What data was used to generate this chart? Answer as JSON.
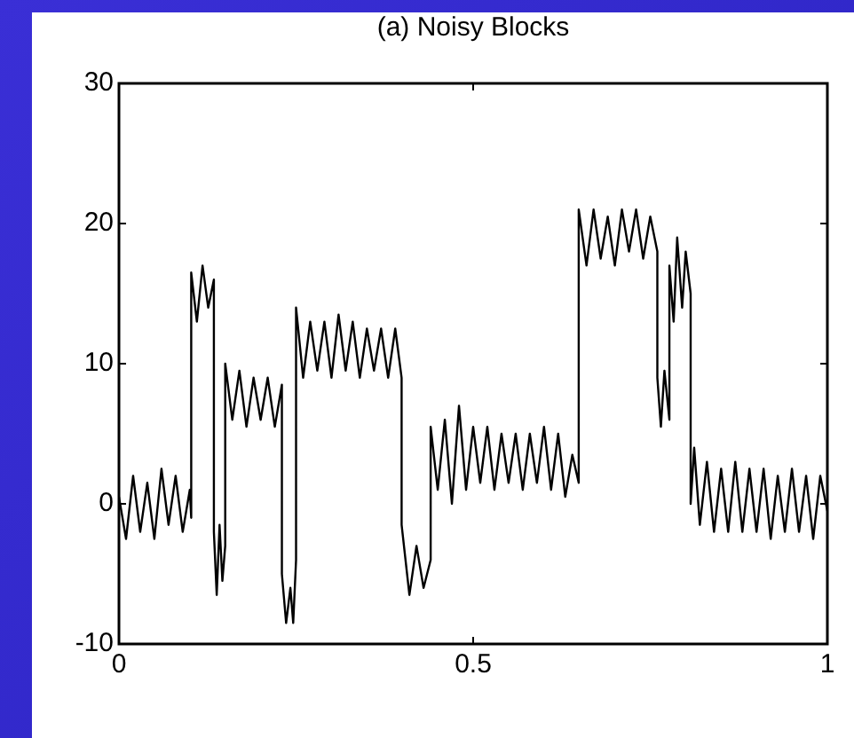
{
  "chart_data": {
    "type": "line",
    "title": "(a) Noisy Blocks",
    "x": [
      0,
      0.01,
      0.02,
      0.03,
      0.04,
      0.05,
      0.06,
      0.07,
      0.08,
      0.09,
      0.1,
      0.102,
      0.102,
      0.11,
      0.118,
      0.126,
      0.134,
      0.134,
      0.138,
      0.142,
      0.146,
      0.15,
      0.15,
      0.16,
      0.17,
      0.18,
      0.19,
      0.2,
      0.21,
      0.22,
      0.23,
      0.23,
      0.236,
      0.242,
      0.246,
      0.25,
      0.25,
      0.26,
      0.27,
      0.28,
      0.29,
      0.3,
      0.31,
      0.32,
      0.33,
      0.34,
      0.35,
      0.36,
      0.37,
      0.38,
      0.39,
      0.399,
      0.399,
      0.41,
      0.42,
      0.43,
      0.44,
      0.44,
      0.45,
      0.46,
      0.47,
      0.48,
      0.49,
      0.5,
      0.51,
      0.52,
      0.53,
      0.54,
      0.55,
      0.56,
      0.57,
      0.58,
      0.59,
      0.6,
      0.61,
      0.62,
      0.63,
      0.64,
      0.649,
      0.649,
      0.66,
      0.67,
      0.68,
      0.69,
      0.7,
      0.71,
      0.72,
      0.73,
      0.74,
      0.75,
      0.76,
      0.76,
      0.765,
      0.77,
      0.777,
      0.777,
      0.783,
      0.788,
      0.795,
      0.8,
      0.807,
      0.807,
      0.812,
      0.82,
      0.83,
      0.84,
      0.85,
      0.86,
      0.87,
      0.88,
      0.89,
      0.9,
      0.91,
      0.92,
      0.93,
      0.94,
      0.95,
      0.96,
      0.97,
      0.98,
      0.99,
      1
    ],
    "series": [
      {
        "color": "#000000",
        "values": [
          0.5,
          -2.5,
          2,
          -2,
          1.5,
          -2.5,
          2.5,
          -1.5,
          2,
          -2,
          1,
          -1,
          16.5,
          13,
          17,
          14,
          16,
          -2,
          -6.5,
          -1.5,
          -5.5,
          -3,
          10,
          6,
          9.5,
          5.5,
          9,
          6,
          9,
          5.5,
          8.5,
          -5,
          -8.5,
          -6,
          -8.5,
          -4,
          14,
          9,
          13,
          9.5,
          13,
          9,
          13.5,
          9.5,
          13,
          9,
          12.5,
          9.5,
          12.5,
          9,
          12.5,
          9,
          -1.5,
          -6.5,
          -3,
          -6,
          -4,
          5.5,
          1,
          6,
          0,
          7,
          1,
          5.5,
          1.5,
          5.5,
          1,
          5,
          1.5,
          5,
          1,
          5,
          1.5,
          5.5,
          1,
          5,
          0.5,
          3.5,
          1.5,
          21,
          17,
          21,
          17.5,
          20.5,
          17,
          21,
          18,
          21,
          17.5,
          20.5,
          18,
          9,
          5.5,
          9.5,
          6,
          17,
          13,
          19,
          14,
          18,
          15,
          0,
          4,
          -1.5,
          3,
          -2,
          2.5,
          -2,
          3,
          -2,
          2.5,
          -2,
          2.5,
          -2.5,
          2,
          -2,
          2.5,
          -2,
          2,
          -2.5,
          2,
          -0.5
        ]
      }
    ],
    "xlim": [
      0,
      1
    ],
    "xticks": [
      0,
      0.5,
      1
    ],
    "ylim": [
      -10,
      30
    ],
    "yticks": [
      -10,
      0,
      10,
      20,
      30
    ],
    "grid": false,
    "legend": false,
    "marker": "none",
    "line_style": "solid"
  }
}
